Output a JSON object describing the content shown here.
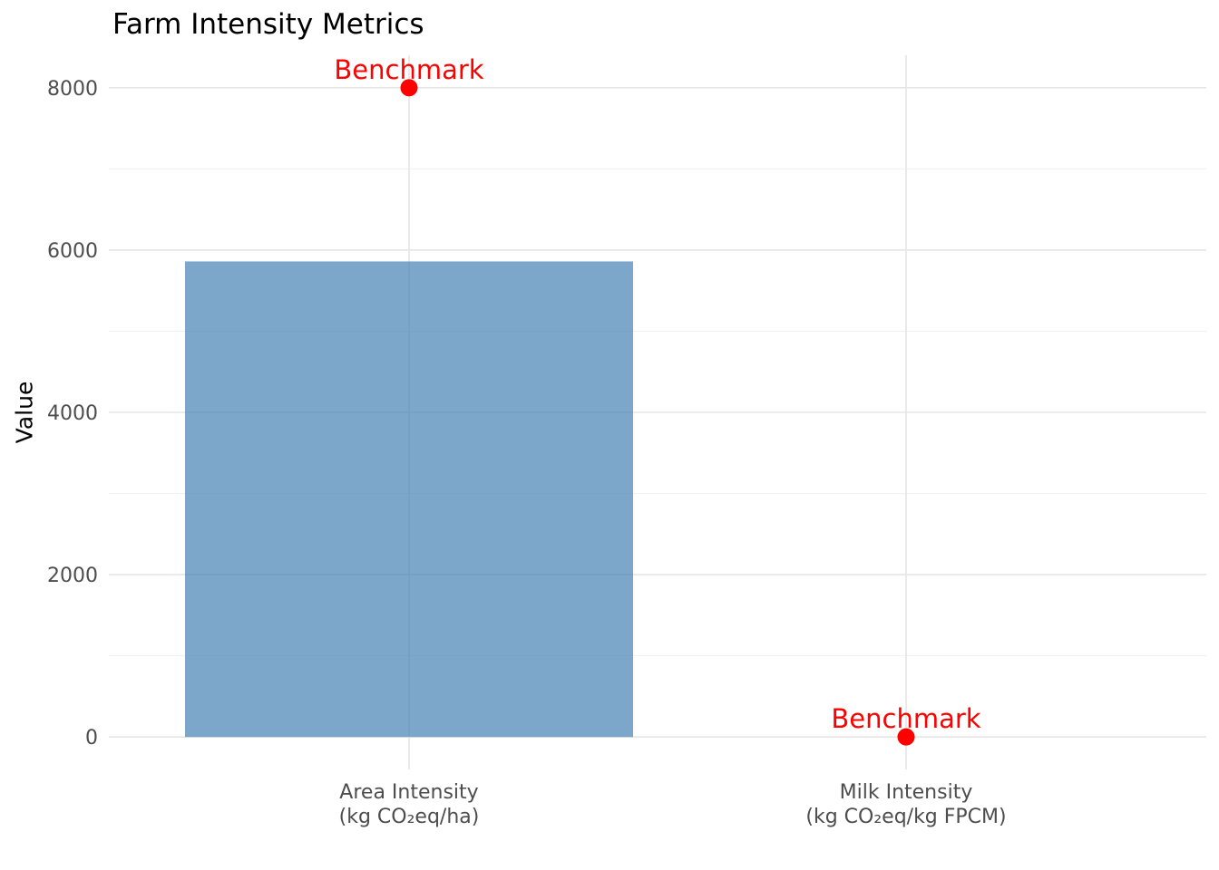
{
  "chart_data": {
    "type": "bar",
    "title": "Farm Intensity Metrics",
    "ylabel": "Value",
    "xlabel": "",
    "categories": [
      "Area Intensity (kg CO₂eq/ha)",
      "Milk Intensity (kg CO₂eq/kg FPCM)"
    ],
    "category_label_lines": [
      [
        "Area Intensity",
        "(kg CO₂eq/ha)"
      ],
      [
        "Milk Intensity",
        "(kg CO₂eq/kg FPCM)"
      ]
    ],
    "series": [
      {
        "name": "Value",
        "kind": "bar",
        "values": [
          5860,
          0
        ]
      },
      {
        "name": "Benchmark",
        "kind": "point",
        "values": [
          8000,
          0
        ],
        "point_label": "Benchmark"
      }
    ],
    "ylim": [
      -400,
      8400
    ],
    "yticks_major": [
      0,
      2000,
      4000,
      6000,
      8000
    ],
    "ytick_labels": [
      "0",
      "2000",
      "4000",
      "6000",
      "8000"
    ],
    "yticks_minor": [
      1000,
      3000,
      5000,
      7000
    ],
    "grid": {
      "horizontal_major": true,
      "horizontal_minor": true,
      "vertical_at_categories": true
    },
    "legend": "none"
  },
  "style": {
    "background_color": "#FFFFFF",
    "bar_color": "#4682B4",
    "bar_opacity": "0.7",
    "benchmark_color": "#FF0000",
    "grid_major_color": "#E5E5E5",
    "grid_minor_color": "#F0F0F0",
    "axis_text_color": "#4D4D4D",
    "title_color": "#000000"
  }
}
